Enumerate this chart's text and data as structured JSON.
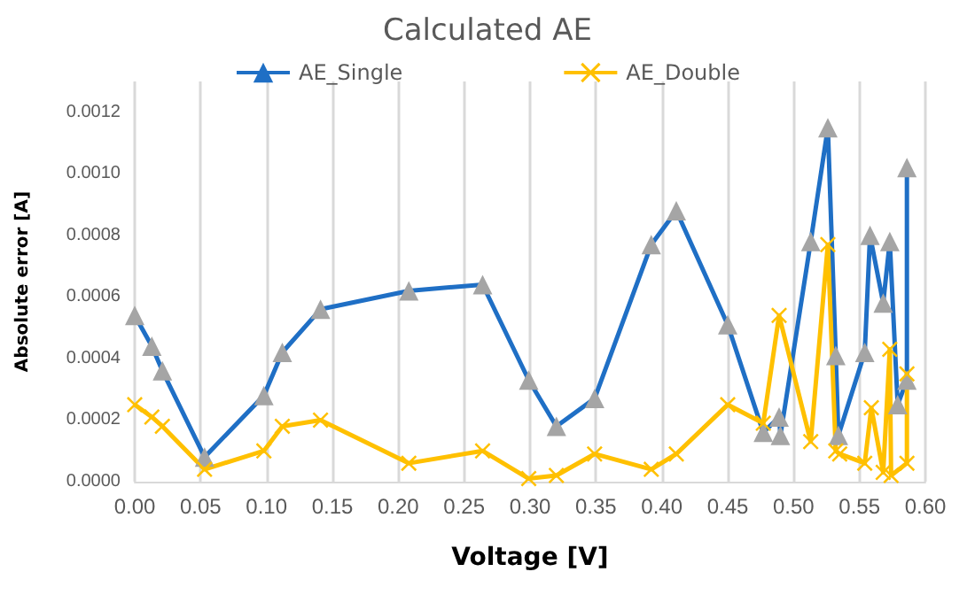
{
  "chart_data": {
    "type": "line",
    "title": "Calculated AE",
    "xlabel": "Voltage [V]",
    "ylabel": "Absolute error [A]",
    "series": [
      {
        "name": "AE_Single",
        "color": "#1f6fc5",
        "marker": "triangle",
        "x": [
          0,
          0.013,
          0.021,
          0.053,
          0.098,
          0.112,
          0.141,
          0.208,
          0.264,
          0.299,
          0.32,
          0.349,
          0.392,
          0.411,
          0.45,
          0.477,
          0.489,
          0.49,
          0.513,
          0.526,
          0.532,
          0.534,
          0.554,
          0.558,
          0.568,
          0.573,
          0.579,
          0.586,
          0.586
        ],
        "values": [
          0.00054,
          0.00044,
          0.00036,
          8e-05,
          0.00028,
          0.00042,
          0.00056,
          0.00062,
          0.00064,
          0.00033,
          0.00018,
          0.00027,
          0.00077,
          0.00088,
          0.00051,
          0.00016,
          0.00021,
          0.00015,
          0.00078,
          0.00115,
          0.00041,
          0.00015,
          0.00042,
          0.0008,
          0.00058,
          0.00078,
          0.00025,
          0.00033,
          0.00102
        ]
      },
      {
        "name": "AE_Double",
        "color": "#ffc000",
        "marker": "cross",
        "x": [
          0,
          0.013,
          0.021,
          0.053,
          0.098,
          0.112,
          0.141,
          0.208,
          0.264,
          0.299,
          0.32,
          0.349,
          0.392,
          0.411,
          0.45,
          0.477,
          0.489,
          0.513,
          0.526,
          0.532,
          0.535,
          0.554,
          0.559,
          0.568,
          0.573,
          0.574,
          0.586,
          0.586
        ],
        "values": [
          0.00025,
          0.00021,
          0.00018,
          4e-05,
          0.0001,
          0.00018,
          0.0002,
          6e-05,
          0.0001,
          1e-05,
          2e-05,
          9e-05,
          4e-05,
          9e-05,
          0.00025,
          0.00019,
          0.00054,
          0.00013,
          0.00077,
          0.0001,
          9e-05,
          6e-05,
          0.00024,
          3e-05,
          0.00043,
          2e-05,
          6e-05,
          0.00035
        ]
      }
    ],
    "xlim": [
      0,
      0.6
    ],
    "xticks": [
      {
        "value": 0,
        "label": "0.00"
      },
      {
        "value": 0.05,
        "label": "0.05"
      },
      {
        "value": 0.1,
        "label": "0.10"
      },
      {
        "value": 0.15,
        "label": "0.15"
      },
      {
        "value": 0.2,
        "label": "0.20"
      },
      {
        "value": 0.25,
        "label": "0.25"
      },
      {
        "value": 0.3,
        "label": "0.30"
      },
      {
        "value": 0.35,
        "label": "0.35"
      },
      {
        "value": 0.4,
        "label": "0.40"
      },
      {
        "value": 0.45,
        "label": "0.45"
      },
      {
        "value": 0.5,
        "label": "0.50"
      },
      {
        "value": 0.55,
        "label": "0.55"
      },
      {
        "value": 0.6,
        "label": "0.60"
      }
    ],
    "ylim": [
      0,
      0.0013
    ],
    "yticks": [
      {
        "value": 0,
        "label": "0.0000"
      },
      {
        "value": 0.0002,
        "label": "0.0002"
      },
      {
        "value": 0.0004,
        "label": "0.0004"
      },
      {
        "value": 0.0006,
        "label": "0.0006"
      },
      {
        "value": 0.0008,
        "label": "0.0008"
      },
      {
        "value": 0.001,
        "label": "0.0010"
      },
      {
        "value": 0.0012,
        "label": "0.0012"
      }
    ],
    "grid": "x",
    "legend": "top"
  }
}
